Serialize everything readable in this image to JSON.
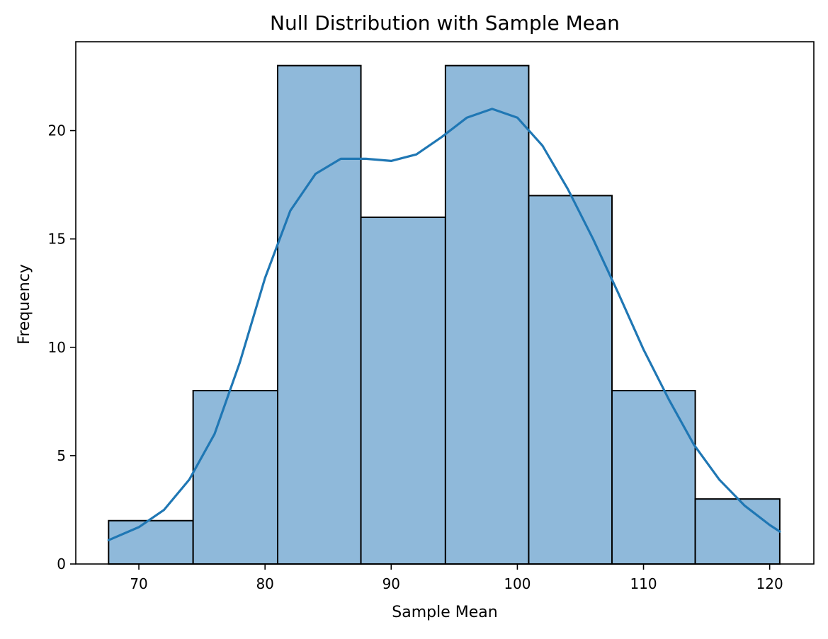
{
  "chart_data": {
    "type": "bar",
    "subtype": "histogram with density curve",
    "title": "Null Distribution with Sample Mean",
    "xlabel": "Sample Mean",
    "ylabel": "Frequency",
    "xlim": [
      65.0,
      123.5
    ],
    "ylim": [
      0,
      24.1
    ],
    "x_ticks": [
      70,
      80,
      90,
      100,
      110,
      120
    ],
    "y_ticks": [
      0,
      5,
      10,
      15,
      20
    ],
    "grid": false,
    "legend": "none",
    "bins": [
      {
        "start": 67.6,
        "end": 74.3,
        "count": 2
      },
      {
        "start": 74.3,
        "end": 81.0,
        "count": 8
      },
      {
        "start": 81.0,
        "end": 87.6,
        "count": 23
      },
      {
        "start": 87.6,
        "end": 94.3,
        "count": 16
      },
      {
        "start": 94.3,
        "end": 100.9,
        "count": 23
      },
      {
        "start": 100.9,
        "end": 107.5,
        "count": 17
      },
      {
        "start": 107.5,
        "end": 114.1,
        "count": 8
      },
      {
        "start": 114.1,
        "end": 120.8,
        "count": 3
      }
    ],
    "kde_curve": {
      "x": [
        67.6,
        70,
        72,
        74,
        76,
        78,
        80,
        82,
        84,
        86,
        88,
        90,
        92,
        94,
        96,
        98,
        100,
        102,
        104,
        106,
        108,
        110,
        112,
        114,
        116,
        118,
        120,
        120.8
      ],
      "y": [
        1.1,
        1.7,
        2.5,
        3.9,
        6.0,
        9.3,
        13.2,
        16.3,
        18.0,
        18.7,
        18.7,
        18.6,
        18.9,
        19.7,
        20.6,
        21.0,
        20.6,
        19.3,
        17.3,
        15.0,
        12.5,
        9.9,
        7.6,
        5.5,
        3.9,
        2.7,
        1.8,
        1.5
      ]
    },
    "colors": {
      "bar_fill": "#8fb9da",
      "bar_edge": "#000000",
      "curve": "#1f77b4"
    }
  }
}
